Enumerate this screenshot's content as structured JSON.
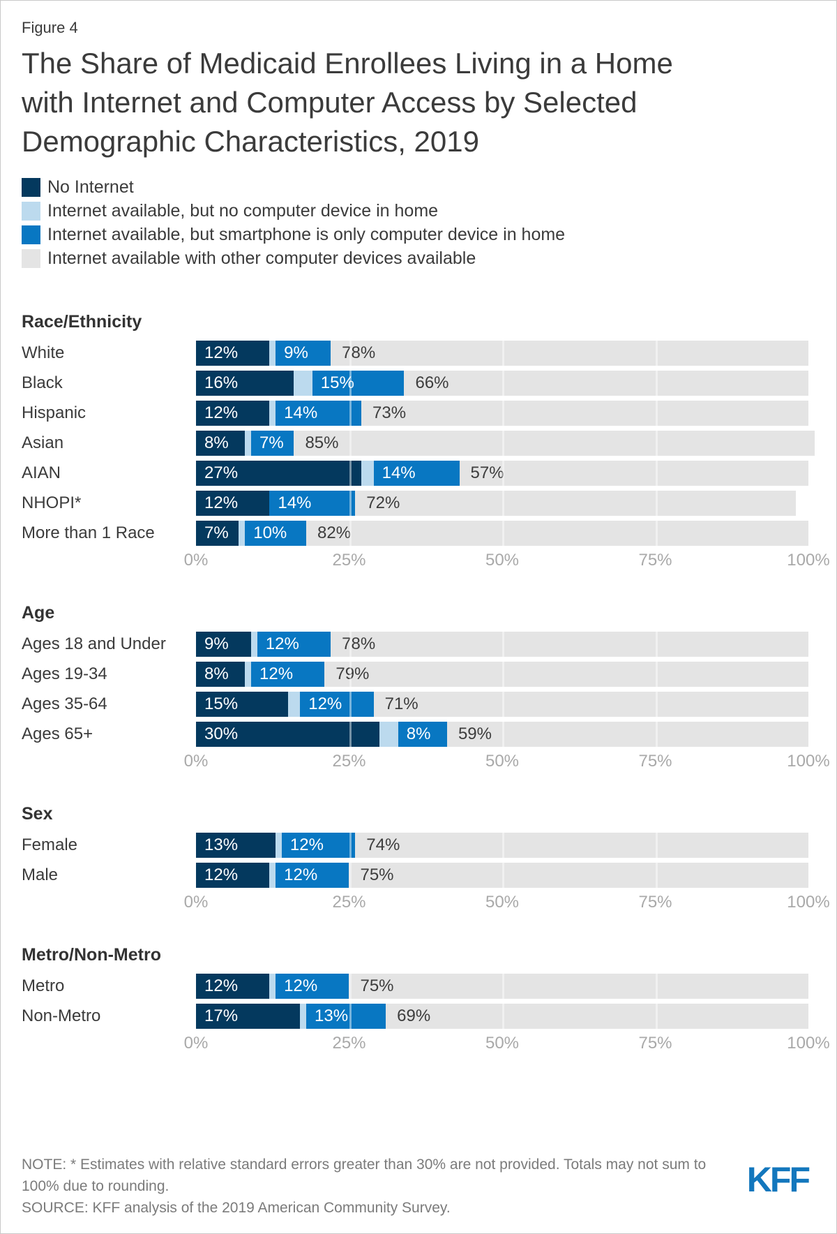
{
  "page": {
    "figure_label": "Figure 4",
    "title": "The Share of Medicaid Enrollees Living in a Home with Internet and Computer Access by Selected Demographic Characteristics, 2019"
  },
  "colors": {
    "navy": "#04395E",
    "light_blue": "#BCDAEE",
    "blue": "#0877C2",
    "track": "#E4E4E4",
    "logo": "#1377BD"
  },
  "legend": {
    "items": [
      {
        "label": "No Internet"
      },
      {
        "label": "Internet available, but no computer device in home"
      },
      {
        "label": "Internet available, but smartphone is only computer device in home"
      },
      {
        "label": "Internet available with other computer devices available"
      }
    ]
  },
  "chart_data": {
    "type": "bar",
    "orientation": "horizontal",
    "stacked": true,
    "unit": "%",
    "title": "The Share of Medicaid Enrollees Living in a Home with Internet and Computer Access by Selected Demographic Characteristics, 2019",
    "legend_entries": [
      "No Internet",
      "Internet available, but no computer device in home",
      "Internet available, but smartphone is only computer device in home",
      "Internet available with other computer devices available"
    ],
    "x_axis": {
      "range": [
        0,
        100
      ],
      "ticks": [
        "0%",
        "25%",
        "50%",
        "75%",
        "100%"
      ]
    },
    "groups": [
      {
        "name": "Race/Ethnicity",
        "rows": [
          {
            "label": "White",
            "values": {
              "no_internet": 12,
              "no_device_est": 1,
              "smartphone": 9,
              "other": 78
            },
            "labels": {
              "no_internet": "12%",
              "smartphone": "9%",
              "other": "78%"
            }
          },
          {
            "label": "Black",
            "values": {
              "no_internet": 16,
              "no_device_est": 3,
              "smartphone": 15,
              "other": 66
            },
            "labels": {
              "no_internet": "16%",
              "smartphone": "15%",
              "other": "66%"
            }
          },
          {
            "label": "Hispanic",
            "values": {
              "no_internet": 12,
              "no_device_est": 1,
              "smartphone": 14,
              "other": 73
            },
            "labels": {
              "no_internet": "12%",
              "smartphone": "14%",
              "other": "73%"
            }
          },
          {
            "label": "Asian",
            "values": {
              "no_internet": 8,
              "no_device_est": 1,
              "smartphone": 7,
              "other": 85
            },
            "labels": {
              "no_internet": "8%",
              "smartphone": "7%",
              "other": "85%"
            }
          },
          {
            "label": "AIAN",
            "values": {
              "no_internet": 27,
              "no_device_est": 2,
              "smartphone": 14,
              "other": 57
            },
            "labels": {
              "no_internet": "27%",
              "smartphone": "14%",
              "other": "57%"
            }
          },
          {
            "label": "NHOPI*",
            "values": {
              "no_internet": 12,
              "no_device_est": 0,
              "smartphone": 14,
              "other": 72
            },
            "labels": {
              "no_internet": "12%",
              "smartphone": "14%",
              "other": "72%"
            }
          },
          {
            "label": "More than 1 Race",
            "values": {
              "no_internet": 7,
              "no_device_est": 1,
              "smartphone": 10,
              "other": 82
            },
            "labels": {
              "no_internet": "7%",
              "smartphone": "10%",
              "other": "82%"
            }
          }
        ]
      },
      {
        "name": "Age",
        "rows": [
          {
            "label": "Ages 18 and Under",
            "values": {
              "no_internet": 9,
              "no_device_est": 1,
              "smartphone": 12,
              "other": 78
            },
            "labels": {
              "no_internet": "9%",
              "smartphone": "12%",
              "other": "78%"
            }
          },
          {
            "label": "Ages 19-34",
            "values": {
              "no_internet": 8,
              "no_device_est": 1,
              "smartphone": 12,
              "other": 79
            },
            "labels": {
              "no_internet": "8%",
              "smartphone": "12%",
              "other": "79%"
            }
          },
          {
            "label": "Ages 35-64",
            "values": {
              "no_internet": 15,
              "no_device_est": 2,
              "smartphone": 12,
              "other": 71
            },
            "labels": {
              "no_internet": "15%",
              "smartphone": "12%",
              "other": "71%"
            }
          },
          {
            "label": "Ages 65+",
            "values": {
              "no_internet": 30,
              "no_device_est": 3,
              "smartphone": 8,
              "other": 59
            },
            "labels": {
              "no_internet": "30%",
              "smartphone": "8%",
              "other": "59%"
            }
          }
        ]
      },
      {
        "name": "Sex",
        "rows": [
          {
            "label": "Female",
            "values": {
              "no_internet": 13,
              "no_device_est": 1,
              "smartphone": 12,
              "other": 74
            },
            "labels": {
              "no_internet": "13%",
              "smartphone": "12%",
              "other": "74%"
            }
          },
          {
            "label": "Male",
            "values": {
              "no_internet": 12,
              "no_device_est": 1,
              "smartphone": 12,
              "other": 75
            },
            "labels": {
              "no_internet": "12%",
              "smartphone": "12%",
              "other": "75%"
            }
          }
        ]
      },
      {
        "name": "Metro/Non-Metro",
        "rows": [
          {
            "label": "Metro",
            "values": {
              "no_internet": 12,
              "no_device_est": 1,
              "smartphone": 12,
              "other": 75
            },
            "labels": {
              "no_internet": "12%",
              "smartphone": "12%",
              "other": "75%"
            }
          },
          {
            "label": "Non-Metro",
            "values": {
              "no_internet": 17,
              "no_device_est": 1,
              "smartphone": 13,
              "other": 69
            },
            "labels": {
              "no_internet": "17%",
              "smartphone": "13%",
              "other": "69%"
            }
          }
        ]
      }
    ]
  },
  "footer": {
    "note": "NOTE: * Estimates with relative standard errors greater than 30% are not provided. Totals may not sum to 100% due to rounding.",
    "source": "SOURCE: KFF analysis of the 2019 American Community Survey.",
    "logo_text": "KFF"
  }
}
